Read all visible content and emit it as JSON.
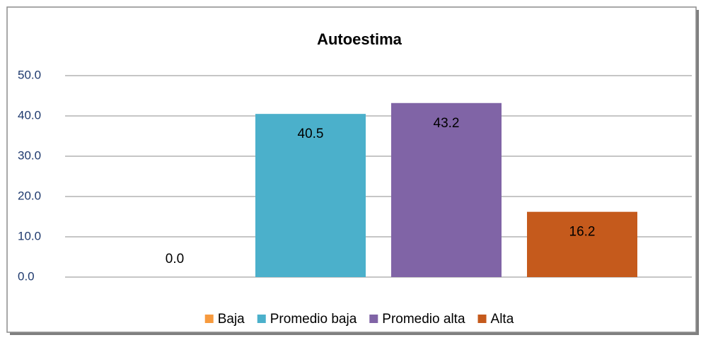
{
  "chart_data": {
    "type": "bar",
    "title": "Autoestima",
    "categories": [
      "Baja",
      "Promedio baja",
      "Promedio alta",
      "Alta"
    ],
    "values": [
      0,
      40.5,
      43.2,
      16.2
    ],
    "value_labels": [
      "0.0",
      "40.5",
      "43.2",
      "16.2"
    ],
    "colors": [
      "#f79a3e",
      "#4bb0cb",
      "#8064a6",
      "#c55a1c"
    ],
    "ylim": [
      0,
      50
    ],
    "yticks": [
      {
        "value": 0,
        "label": "0.0"
      },
      {
        "value": 10,
        "label": "10.0"
      },
      {
        "value": 20,
        "label": "20.0"
      },
      {
        "value": 30,
        "label": "30.0"
      },
      {
        "value": 40,
        "label": "40.0"
      },
      {
        "value": 50,
        "label": "50.0"
      }
    ],
    "grid": true
  }
}
